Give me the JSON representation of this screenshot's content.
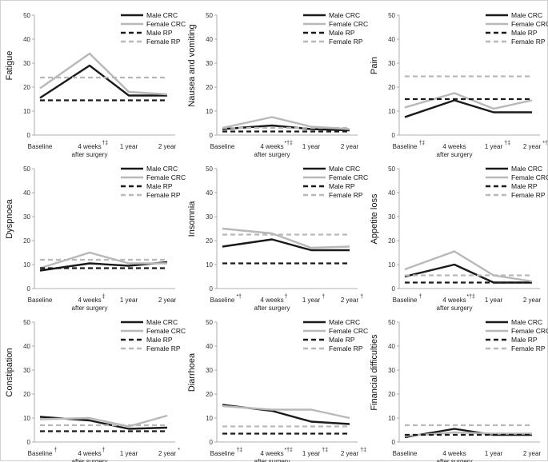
{
  "chart_data": [
    {
      "type": "line",
      "title": "",
      "ylabel": "Fatigue",
      "xlabel": "",
      "ylim": [
        0,
        50
      ],
      "yticks": [
        0,
        10,
        20,
        30,
        40,
        50
      ],
      "categories": [
        "Baseline",
        "4 weeks",
        "1 year",
        "2 year"
      ],
      "category_marks": [
        "",
        "†‡",
        "",
        ""
      ],
      "sublabel": "after surgery",
      "series": [
        {
          "name": "Male CRC",
          "values": [
            15.5,
            29,
            16.5,
            16.5
          ]
        },
        {
          "name": "Female CRC",
          "values": [
            19.5,
            34,
            18,
            17
          ]
        },
        {
          "name": "Male RP",
          "values": [
            14.5,
            14.5,
            14.5,
            14.5
          ]
        },
        {
          "name": "Female RP",
          "values": [
            24,
            24,
            24,
            24
          ]
        }
      ]
    },
    {
      "type": "line",
      "title": "",
      "ylabel": "Nausea and vomiting",
      "xlabel": "",
      "ylim": [
        0,
        50
      ],
      "yticks": [
        0,
        10,
        20,
        30,
        40,
        50
      ],
      "categories": [
        "Baseline",
        "4 weeks",
        "1 year",
        "2 year"
      ],
      "category_marks": [
        "",
        "*†‡",
        "",
        ""
      ],
      "sublabel": "after surgery",
      "series": [
        {
          "name": "Male CRC",
          "values": [
            2.5,
            4,
            2.5,
            2
          ]
        },
        {
          "name": "Female CRC",
          "values": [
            3,
            7.5,
            3.5,
            2.5
          ]
        },
        {
          "name": "Male RP",
          "values": [
            1.5,
            1.5,
            1.5,
            1.5
          ]
        },
        {
          "name": "Female RP",
          "values": [
            3,
            3,
            3,
            3
          ]
        }
      ]
    },
    {
      "type": "line",
      "title": "",
      "ylabel": "Pain",
      "xlabel": "",
      "ylim": [
        0,
        50
      ],
      "yticks": [
        0,
        10,
        20,
        30,
        40,
        50
      ],
      "categories": [
        "Baseline",
        "4 weeks",
        "1 year",
        "2 year"
      ],
      "category_marks": [
        "†‡",
        "",
        "†‡",
        "*†‡"
      ],
      "sublabel": "after surgery",
      "series": [
        {
          "name": "Male CRC",
          "values": [
            7.5,
            14.5,
            9.5,
            9.5
          ]
        },
        {
          "name": "Female CRC",
          "values": [
            11.5,
            17.5,
            11,
            14.5
          ]
        },
        {
          "name": "Male RP",
          "values": [
            15,
            15,
            15,
            15
          ]
        },
        {
          "name": "Female RP",
          "values": [
            24.5,
            24.5,
            24.5,
            24.5
          ]
        }
      ]
    },
    {
      "type": "line",
      "title": "",
      "ylabel": "Dyspnoea",
      "xlabel": "",
      "ylim": [
        0,
        50
      ],
      "yticks": [
        0,
        10,
        20,
        30,
        40,
        50
      ],
      "categories": [
        "Baseline",
        "4 weeks",
        "1 year",
        "2 year"
      ],
      "category_marks": [
        "",
        "‡",
        "",
        ""
      ],
      "sublabel": "after surgery",
      "series": [
        {
          "name": "Male CRC",
          "values": [
            7.5,
            10.5,
            9.5,
            11
          ]
        },
        {
          "name": "Female CRC",
          "values": [
            8.5,
            15,
            10.5,
            10.5
          ]
        },
        {
          "name": "Male RP",
          "values": [
            8.5,
            8.5,
            8.5,
            8.5
          ]
        },
        {
          "name": "Female RP",
          "values": [
            12,
            12,
            12,
            12
          ]
        }
      ]
    },
    {
      "type": "line",
      "title": "",
      "ylabel": "Insomnia",
      "xlabel": "",
      "ylim": [
        0,
        50
      ],
      "yticks": [
        0,
        10,
        20,
        30,
        40,
        50
      ],
      "categories": [
        "Baseline",
        "4 weeks",
        "1 year",
        "2 year"
      ],
      "category_marks": [
        "*†",
        "†",
        "†",
        "†"
      ],
      "sublabel": "after surgery",
      "series": [
        {
          "name": "Male CRC",
          "values": [
            17.5,
            20.5,
            16,
            16
          ]
        },
        {
          "name": "Female CRC",
          "values": [
            25,
            23,
            17,
            17.5
          ]
        },
        {
          "name": "Male RP",
          "values": [
            10.5,
            10.5,
            10.5,
            10.5
          ]
        },
        {
          "name": "Female RP",
          "values": [
            22.5,
            22.5,
            22.5,
            22.5
          ]
        }
      ]
    },
    {
      "type": "line",
      "title": "",
      "ylabel": "Appetite loss",
      "xlabel": "",
      "ylim": [
        0,
        50
      ],
      "yticks": [
        0,
        10,
        20,
        30,
        40,
        50
      ],
      "categories": [
        "Baseline",
        "4 weeks",
        "1 year",
        "2 year"
      ],
      "category_marks": [
        "†",
        "*†‡",
        "",
        ""
      ],
      "sublabel": "after surgery",
      "series": [
        {
          "name": "Male CRC",
          "values": [
            5,
            10,
            2.5,
            2.5
          ]
        },
        {
          "name": "Female CRC",
          "values": [
            8,
            15.5,
            5.5,
            3
          ]
        },
        {
          "name": "Male RP",
          "values": [
            2.5,
            2.5,
            2.5,
            2.5
          ]
        },
        {
          "name": "Female RP",
          "values": [
            5.5,
            5.5,
            5.5,
            5.5
          ]
        }
      ]
    },
    {
      "type": "line",
      "title": "",
      "ylabel": "Constipation",
      "xlabel": "",
      "ylim": [
        0,
        50
      ],
      "yticks": [
        0,
        10,
        20,
        30,
        40,
        50
      ],
      "categories": [
        "Baseline",
        "4 weeks",
        "1 year",
        "2 year"
      ],
      "category_marks": [
        "†",
        "†",
        "",
        "*"
      ],
      "sublabel": "after surgery",
      "series": [
        {
          "name": "Male CRC",
          "values": [
            10.5,
            9,
            5.5,
            6
          ]
        },
        {
          "name": "Female CRC",
          "values": [
            9.5,
            10,
            6.5,
            11
          ]
        },
        {
          "name": "Male RP",
          "values": [
            4.5,
            4.5,
            4.5,
            4.5
          ]
        },
        {
          "name": "Female RP",
          "values": [
            7,
            7,
            7,
            7
          ]
        }
      ]
    },
    {
      "type": "line",
      "title": "",
      "ylabel": "Diarrhoea",
      "xlabel": "",
      "ylim": [
        0,
        50
      ],
      "yticks": [
        0,
        10,
        20,
        30,
        40,
        50
      ],
      "categories": [
        "Baseline",
        "4 weeks",
        "1 year",
        "2 year"
      ],
      "category_marks": [
        "†‡",
        "*†‡",
        "†‡",
        "†‡"
      ],
      "sublabel": "after surgery",
      "series": [
        {
          "name": "Male CRC",
          "values": [
            15.5,
            13,
            8.5,
            7.5
          ]
        },
        {
          "name": "Female CRC",
          "values": [
            15,
            13.5,
            13.5,
            10
          ]
        },
        {
          "name": "Male RP",
          "values": [
            3.5,
            3.5,
            3.5,
            3.5
          ]
        },
        {
          "name": "Female RP",
          "values": [
            6.5,
            6.5,
            6.5,
            6.5
          ]
        }
      ]
    },
    {
      "type": "line",
      "title": "",
      "ylabel": "Financial difficulties",
      "xlabel": "",
      "ylim": [
        0,
        50
      ],
      "yticks": [
        0,
        10,
        20,
        30,
        40,
        50
      ],
      "categories": [
        "Baseline",
        "4 weeks",
        "1 year",
        "2 year"
      ],
      "category_marks": [
        "",
        "",
        "",
        ""
      ],
      "sublabel": "after surgery",
      "series": [
        {
          "name": "Male CRC",
          "values": [
            2,
            5.5,
            3,
            3
          ]
        },
        {
          "name": "Female CRC",
          "values": [
            2.5,
            4,
            3.5,
            3.5
          ]
        },
        {
          "name": "Male RP",
          "values": [
            3,
            3,
            3,
            3
          ]
        },
        {
          "name": "Female RP",
          "values": [
            7,
            7,
            7,
            7
          ]
        }
      ]
    }
  ],
  "series_styles": {
    "Male CRC": {
      "color": "#1a1a1a",
      "dashed": false
    },
    "Female CRC": {
      "color": "#b8b8b8",
      "dashed": false
    },
    "Male RP": {
      "color": "#1a1a1a",
      "dashed": true
    },
    "Female RP": {
      "color": "#b8b8b8",
      "dashed": true
    }
  }
}
